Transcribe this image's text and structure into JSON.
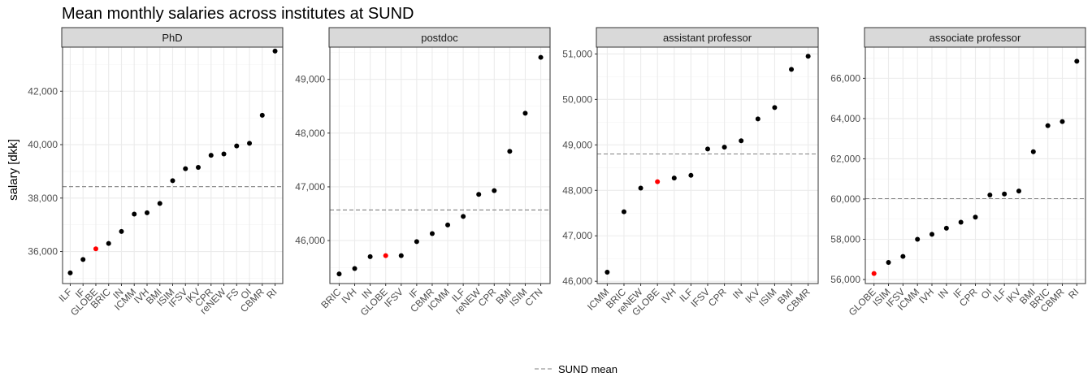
{
  "title": "Mean monthly salaries across institutes at SUND",
  "ylabel": "salary [dkk]",
  "legend": {
    "label": "SUND mean"
  },
  "colors": {
    "point": "#000000",
    "highlight": "#ff0000",
    "mean_line": "#808080",
    "strip_bg": "#d9d9d9",
    "grid": "#ebebeb"
  },
  "chart_data": [
    {
      "type": "scatter",
      "facet": "PhD",
      "categories": [
        "ILF",
        "IF",
        "GLOBE",
        "BRIC",
        "IN",
        "ICMM",
        "IVH",
        "BMI",
        "ISIM",
        "IFSV",
        "IKV",
        "CPR",
        "reNEW",
        "FS",
        "OI",
        "CBMR",
        "RI"
      ],
      "values": [
        35200,
        35700,
        36100,
        36300,
        36750,
        37400,
        37450,
        37800,
        38650,
        39100,
        39150,
        39600,
        39650,
        39950,
        40050,
        41100,
        43500
      ],
      "highlight": "GLOBE",
      "mean": 38430,
      "ylim": [
        34800,
        43650
      ],
      "yticks": [
        36000,
        38000,
        40000,
        42000
      ],
      "ytick_labels": [
        "36,000",
        "38,000",
        "40,000",
        "42,000"
      ]
    },
    {
      "type": "scatter",
      "facet": "postdoc",
      "categories": [
        "BRIC",
        "IVH",
        "IN",
        "GLOBE",
        "IFSV",
        "IF",
        "CBMR",
        "ICMM",
        "ILF",
        "reNEW",
        "CPR",
        "BMI",
        "ISIM",
        "CTN"
      ],
      "values": [
        45380,
        45480,
        45700,
        45720,
        45720,
        45980,
        46130,
        46290,
        46450,
        46860,
        46930,
        47660,
        48370,
        49410
      ],
      "highlight": "GLOBE",
      "mean": 46570,
      "ylim": [
        45200,
        49600
      ],
      "yticks": [
        46000,
        47000,
        48000,
        49000
      ],
      "ytick_labels": [
        "46,000",
        "47,000",
        "48,000",
        "49,000"
      ]
    },
    {
      "type": "scatter",
      "facet": "assistant professor",
      "categories": [
        "ICMM",
        "BRIC",
        "reNEW",
        "GLOBE",
        "IVH",
        "ILF",
        "IFSV",
        "CPR",
        "IN",
        "IKV",
        "ISIM",
        "BMI",
        "CBMR"
      ],
      "values": [
        46200,
        47530,
        48050,
        48190,
        48270,
        48330,
        48910,
        48950,
        49090,
        49570,
        49820,
        50660,
        50950
      ],
      "highlight": "GLOBE",
      "mean": 48800,
      "ylim": [
        45950,
        51150
      ],
      "yticks": [
        46000,
        47000,
        48000,
        49000,
        50000,
        51000
      ],
      "ytick_labels": [
        "46,000",
        "47,000",
        "48,000",
        "49,000",
        "50,000",
        "51,000"
      ]
    },
    {
      "type": "scatter",
      "facet": "associate professor",
      "categories": [
        "GLOBE",
        "ISIM",
        "IFSV",
        "ICMM",
        "IVH",
        "IN",
        "IF",
        "CPR",
        "OI",
        "ILF",
        "IKV",
        "BMI",
        "BRIC",
        "CBMR",
        "RI"
      ],
      "values": [
        56300,
        56850,
        57150,
        58000,
        58250,
        58550,
        58850,
        59100,
        60200,
        60250,
        60400,
        62350,
        63650,
        63850,
        66850
      ],
      "highlight": "GLOBE",
      "mean": 60020,
      "ylim": [
        55800,
        67550
      ],
      "yticks": [
        56000,
        58000,
        60000,
        62000,
        64000,
        66000
      ],
      "ytick_labels": [
        "56,000",
        "58,000",
        "60,000",
        "62,000",
        "64,000",
        "66,000"
      ]
    }
  ]
}
